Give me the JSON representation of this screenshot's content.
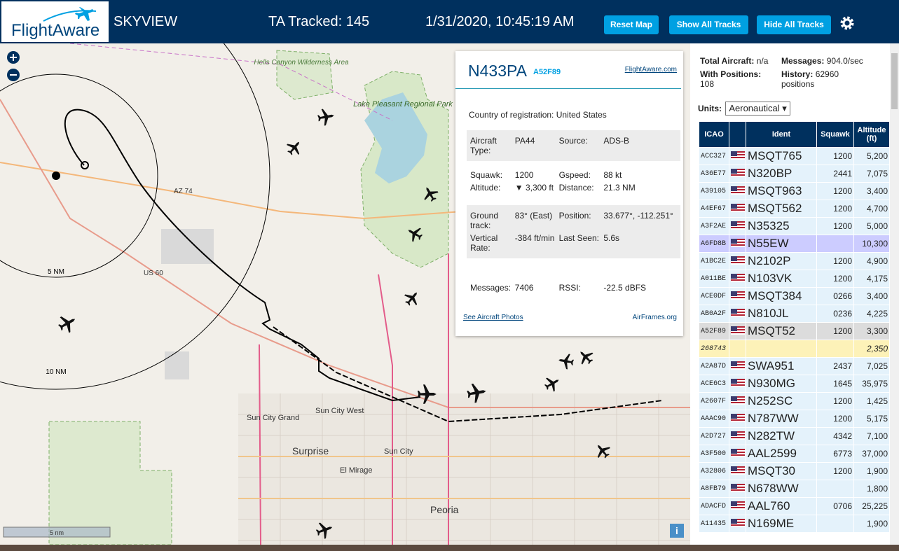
{
  "header": {
    "logo": "FlightAware",
    "title": "SKYVIEW",
    "tracked": "TA Tracked: 145",
    "datetime": "1/31/2020, 10:45:19 AM",
    "buttons": [
      "Reset Map",
      "Show All Tracks",
      "Hide All Tracks"
    ]
  },
  "map": {
    "labels": [
      "Hells Canyon Wilderness Area",
      "Lake Pleasant Regional Park",
      "AZ 74",
      "US 60",
      "Sun City Grand",
      "Sun City West",
      "Surprise",
      "El Mirage",
      "Sun City",
      "Peoria"
    ],
    "range_labels": [
      "5 NM",
      "10 NM"
    ],
    "scale": "5 nm"
  },
  "popup": {
    "callsign": "N433PA",
    "icao": "A52F89",
    "link": "FlightAware.com",
    "country_label": "Country of registration:",
    "country": "United States",
    "sections": [
      {
        "shaded": true,
        "rows": [
          [
            "Aircraft Type:",
            "PA44",
            "Source:",
            "ADS-B"
          ]
        ]
      },
      {
        "shaded": false,
        "rows": [
          [
            "Squawk:",
            "1200",
            "Gspeed:",
            "88 kt"
          ],
          [
            "Altitude:",
            "▼ 3,300 ft",
            "Distance:",
            "21.3 NM"
          ]
        ]
      },
      {
        "shaded": true,
        "rows": [
          [
            "Ground track:",
            "83° (East)",
            "Position:",
            "33.677°, -112.251°"
          ],
          [
            "Vertical Rate:",
            "-384 ft/min",
            "Last Seen:",
            "5.6s"
          ]
        ]
      },
      {
        "shaded": false,
        "rows": [
          [
            "Messages:",
            "7406",
            "RSSI:",
            "-22.5 dBFS"
          ]
        ]
      }
    ],
    "photos_link": "See Aircraft Photos",
    "airframes_link": "AirFrames.org"
  },
  "stats": {
    "total_label": "Total Aircraft:",
    "total": "n/a",
    "messages_label": "Messages:",
    "messages": "904.0/sec",
    "positions_label": "With Positions:",
    "positions": "108",
    "history_label": "History:",
    "history": "62960 positions",
    "units_label": "Units:",
    "units": "Aeronautical"
  },
  "table": {
    "columns": [
      "ICAO",
      "Ident",
      "Squawk",
      "Altitude (ft)"
    ],
    "rows": [
      {
        "icao": "ACC327",
        "ident": "MSQT765",
        "squawk": "1200",
        "altitude": "5,200"
      },
      {
        "icao": "A36E77",
        "ident": "N320BP",
        "squawk": "2441",
        "altitude": "7,075"
      },
      {
        "icao": "A39105",
        "ident": "MSQT963",
        "squawk": "1200",
        "altitude": "3,400"
      },
      {
        "icao": "A4EF67",
        "ident": "MSQT562",
        "squawk": "1200",
        "altitude": "4,700"
      },
      {
        "icao": "A3F2AE",
        "ident": "N35325",
        "squawk": "1200",
        "altitude": "5,000"
      },
      {
        "icao": "A6FD8B",
        "ident": "N55EW",
        "altitude": "10,300",
        "row_color": "#ccccff"
      },
      {
        "icao": "A1BC2E",
        "ident": "N2102P",
        "squawk": "1200",
        "altitude": "4,900"
      },
      {
        "icao": "A011BE",
        "ident": "N103VK",
        "squawk": "1200",
        "altitude": "4,175"
      },
      {
        "icao": "ACE0DF",
        "ident": "MSQT384",
        "squawk": "0266",
        "altitude": "3,400"
      },
      {
        "icao": "AB0A2F",
        "ident": "N810JL",
        "squawk": "0236",
        "altitude": "4,225"
      },
      {
        "icao": "A52F89",
        "ident": "MSQT52",
        "squawk": "1200",
        "altitude": "3,300",
        "row_color": "#dcdcdc"
      },
      {
        "icao": "268743",
        "altitude": "2,350",
        "row_color": "#fdf2b8"
      },
      {
        "icao": "A2A87D",
        "ident": "SWA951",
        "squawk": "2437",
        "altitude": "7,025"
      },
      {
        "icao": "ACE6C3",
        "ident": "N930MG",
        "squawk": "1645",
        "altitude": "35,975"
      },
      {
        "icao": "A2607F",
        "ident": "N252SC",
        "squawk": "1200",
        "altitude": "1,425"
      },
      {
        "icao": "AAAC90",
        "ident": "N787WW",
        "squawk": "1200",
        "altitude": "5,175"
      },
      {
        "icao": "A2D727",
        "ident": "N282TW",
        "squawk": "4342",
        "altitude": "7,100"
      },
      {
        "icao": "A3F500",
        "ident": "AAL2599",
        "squawk": "6773",
        "altitude": "37,000"
      },
      {
        "icao": "A32806",
        "ident": "MSQT30",
        "squawk": "1200",
        "altitude": "1,900"
      },
      {
        "icao": "A8FB79",
        "ident": "N678WW",
        "altitude": "1,800"
      },
      {
        "icao": "ADACFD",
        "ident": "AAL760",
        "squawk": "0706",
        "altitude": "25,225"
      },
      {
        "icao": "A11435",
        "ident": "N169ME",
        "altitude": "1,900"
      }
    ]
  }
}
